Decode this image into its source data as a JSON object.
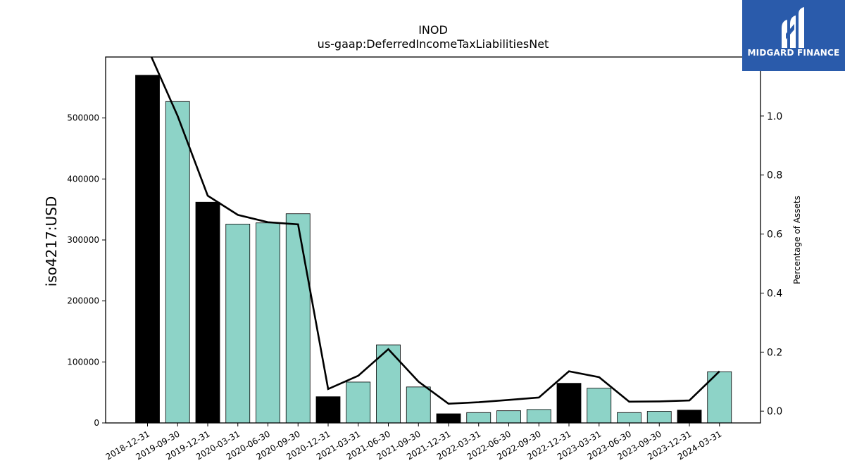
{
  "chart_data": {
    "type": "bar",
    "title": "INOD",
    "subtitle": "us-gaap:DeferredIncomeTaxLiabilitiesNet",
    "ylabel": "iso4217:USD",
    "ylabel_right": "Percentage of Assets",
    "ylim": [
      0,
      600000
    ],
    "ylim_right": [
      -0.04,
      1.2
    ],
    "y_ticks": [
      "0",
      "100000",
      "200000",
      "300000",
      "400000",
      "500000"
    ],
    "y_ticks_right": [
      "0.0",
      "0.2",
      "0.4",
      "0.6",
      "0.8",
      "1.0"
    ],
    "categories": [
      "2018-12-31",
      "2019-09-30",
      "2019-12-31",
      "2020-03-31",
      "2020-06-30",
      "2020-09-30",
      "2020-12-31",
      "2021-03-31",
      "2021-06-30",
      "2021-09-30",
      "2021-12-31",
      "2022-03-31",
      "2022-06-30",
      "2022-09-30",
      "2022-12-31",
      "2023-03-31",
      "2023-06-30",
      "2023-09-30",
      "2023-12-31",
      "2024-03-31"
    ],
    "series": [
      {
        "type": "bar",
        "values": [
          570000,
          527000,
          362000,
          326000,
          328000,
          343000,
          43000,
          67000,
          128000,
          59000,
          15000,
          17000,
          20000,
          22000,
          65000,
          57000,
          17000,
          19000,
          21000,
          84000
        ],
        "period_end_year": [
          true,
          false,
          true,
          false,
          false,
          false,
          true,
          false,
          false,
          false,
          true,
          false,
          false,
          false,
          true,
          false,
          false,
          false,
          true,
          false
        ]
      },
      {
        "type": "line",
        "axis": "right",
        "values": [
          1.23,
          1.0,
          0.73,
          0.665,
          0.64,
          0.633,
          0.075,
          0.12,
          0.21,
          0.1,
          0.025,
          0.03,
          0.038,
          0.046,
          0.135,
          0.115,
          0.032,
          0.033,
          0.036,
          0.135
        ]
      }
    ],
    "colors": {
      "annual": "#000000",
      "quarterly": "#8dd3c7",
      "line": "#000000"
    },
    "grid": false
  },
  "logo": {
    "text": "MIDGARD FINANCE",
    "color": "#2a5bab"
  }
}
